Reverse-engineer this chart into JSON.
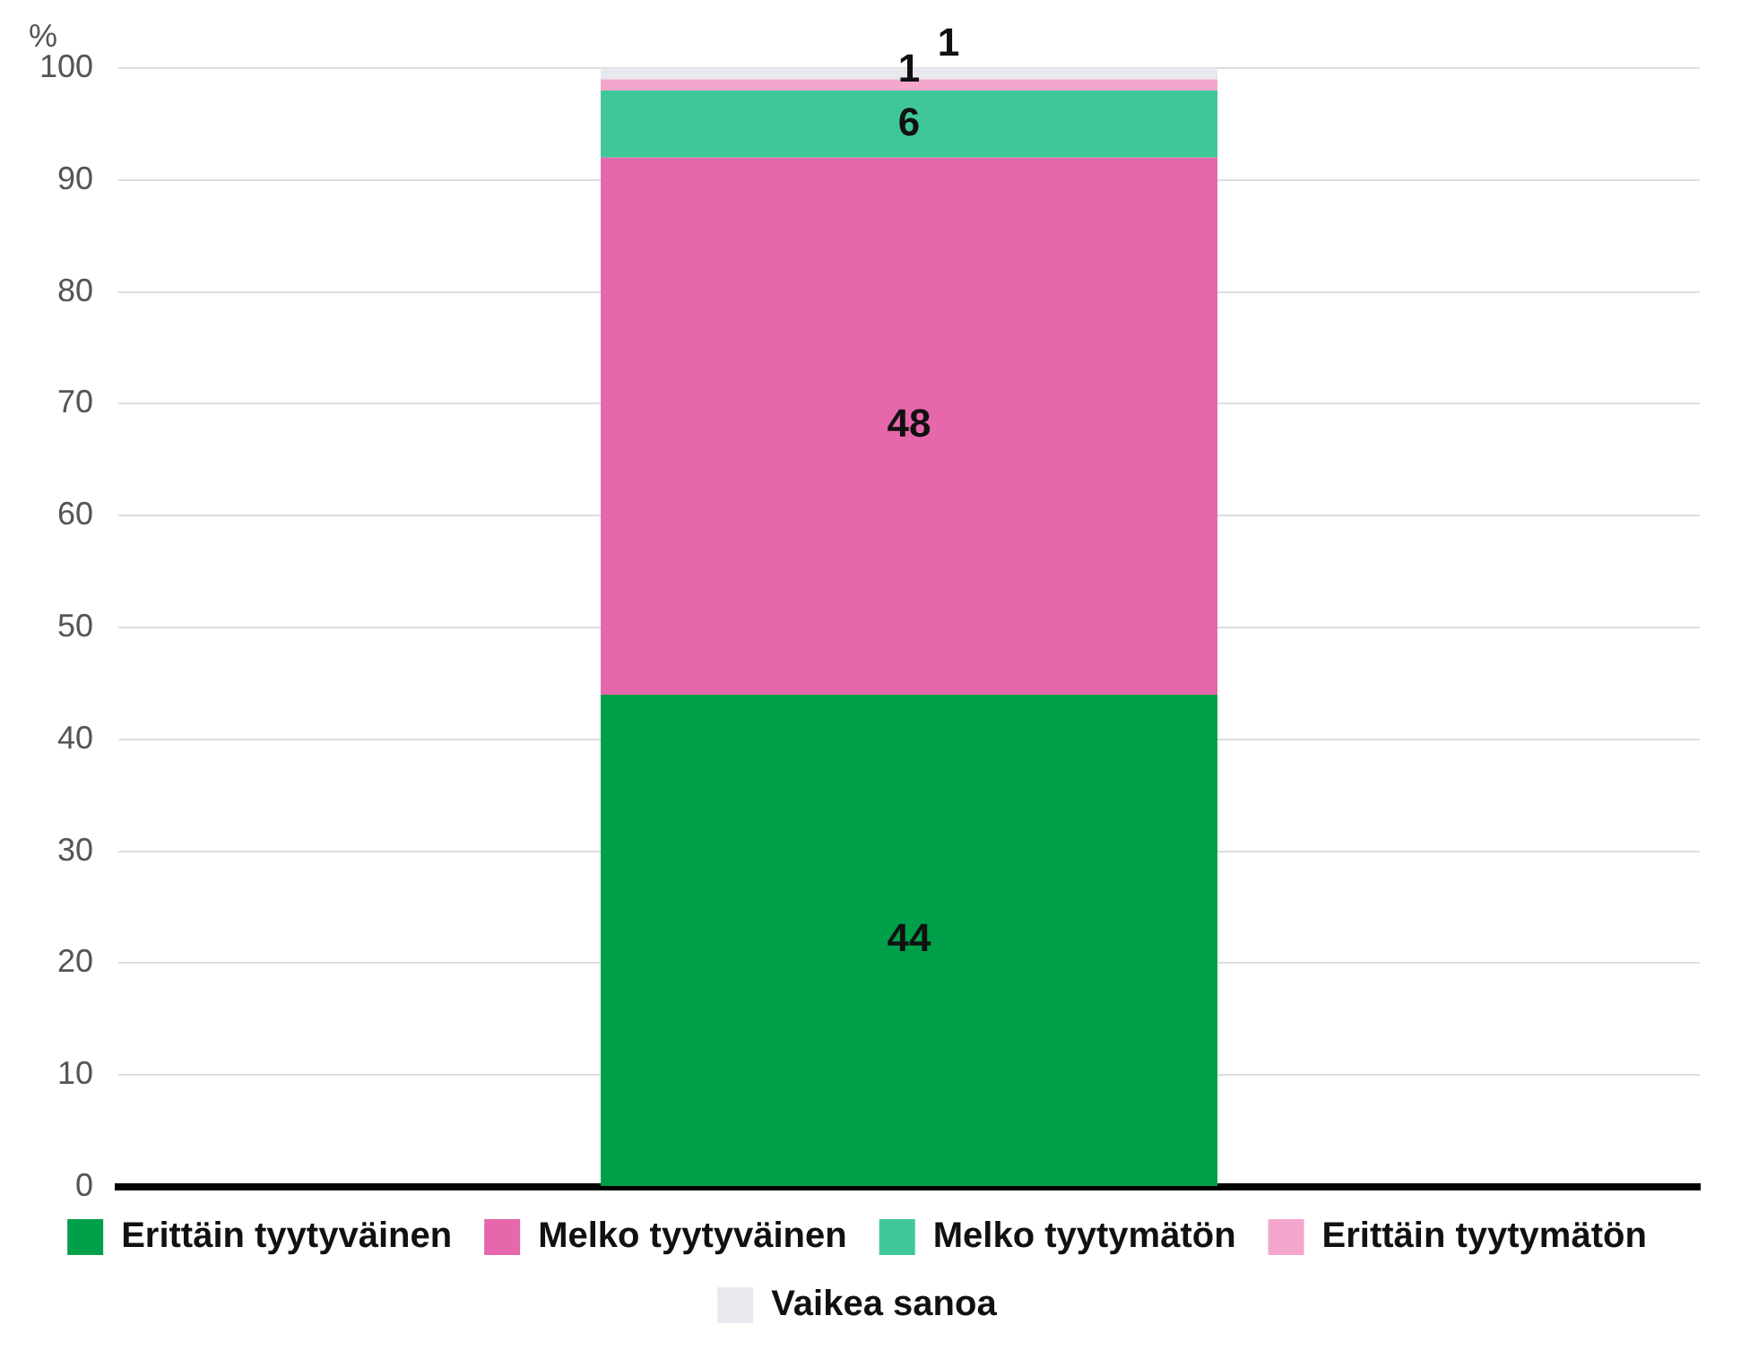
{
  "chart_data": {
    "type": "bar",
    "stacked": true,
    "ylabel": "%",
    "categories": [
      null
    ],
    "series": [
      {
        "name": "Erittäin tyytyväinen",
        "color": "#00a04a",
        "values": [
          44
        ]
      },
      {
        "name": "Melko tyytyväinen",
        "color": "#e667ac",
        "values": [
          48
        ]
      },
      {
        "name": "Melko tyytymätön",
        "color": "#40c797",
        "values": [
          6
        ]
      },
      {
        "name": "Erittäin tyytymätön",
        "color": "#f4a6cc",
        "values": [
          1
        ]
      },
      {
        "name": "Vaikea sanoa",
        "color": "#e8e8ee",
        "values": [
          1
        ]
      }
    ],
    "ylim": [
      0,
      100
    ],
    "yticks": [
      0,
      10,
      20,
      30,
      40,
      50,
      60,
      70,
      80,
      90,
      100
    ],
    "grid": "y",
    "legend": "bottom",
    "data_labels": true
  }
}
